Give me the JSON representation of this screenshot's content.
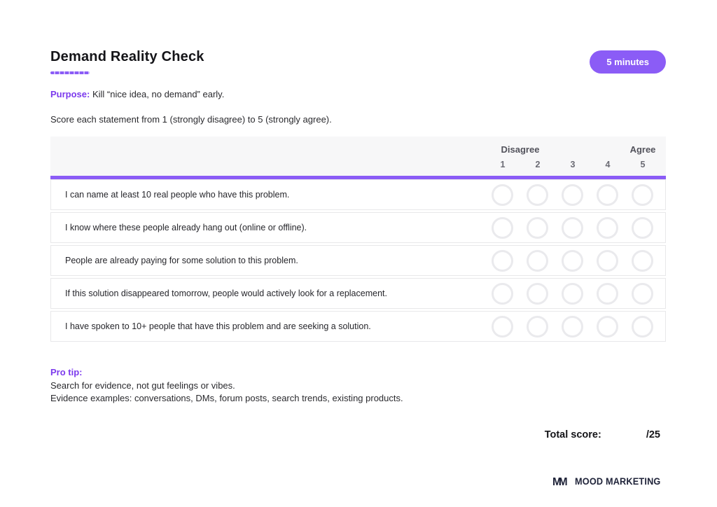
{
  "page": {
    "title": "Demand Reality Check",
    "time_badge": "5 minutes",
    "purpose_label": "Purpose:",
    "purpose_text": " Kill “nice idea, no demand” early.",
    "instruction": "Score each statement from 1 (strongly disagree) to 5 (strongly agree)."
  },
  "table": {
    "disagree_label": "Disagree",
    "agree_label": "Agree",
    "scale": [
      "1",
      "2",
      "3",
      "4",
      "5"
    ],
    "statements": [
      "I can name at least 10 real people who have this problem.",
      "I know where these people already hang out (online or offline).",
      "People are already paying for some solution to this problem.",
      "If this solution disappeared tomorrow, people would actively look for a replacement.",
      "I have spoken to 10+ people that have this problem and are seeking a solution."
    ]
  },
  "pro_tip": {
    "label": "Pro tip:",
    "line1": "Search for evidence, not gut feelings or vibes.",
    "line2": "Evidence examples: conversations, DMs, forum posts, search trends, existing products."
  },
  "total": {
    "label": "Total score:",
    "value": "/25"
  },
  "footer": {
    "brand": "MOOD MARKETING"
  },
  "colors": {
    "accent_purple": "#8B5CF6",
    "purple_text": "#7C3AED",
    "text_dark": "#141418",
    "muted_gray": "#52525B",
    "circle_border": "#EAEAED",
    "row_border": "#E8E8EA",
    "header_bg": "#F7F7F8",
    "logo_navy": "#20243A"
  }
}
